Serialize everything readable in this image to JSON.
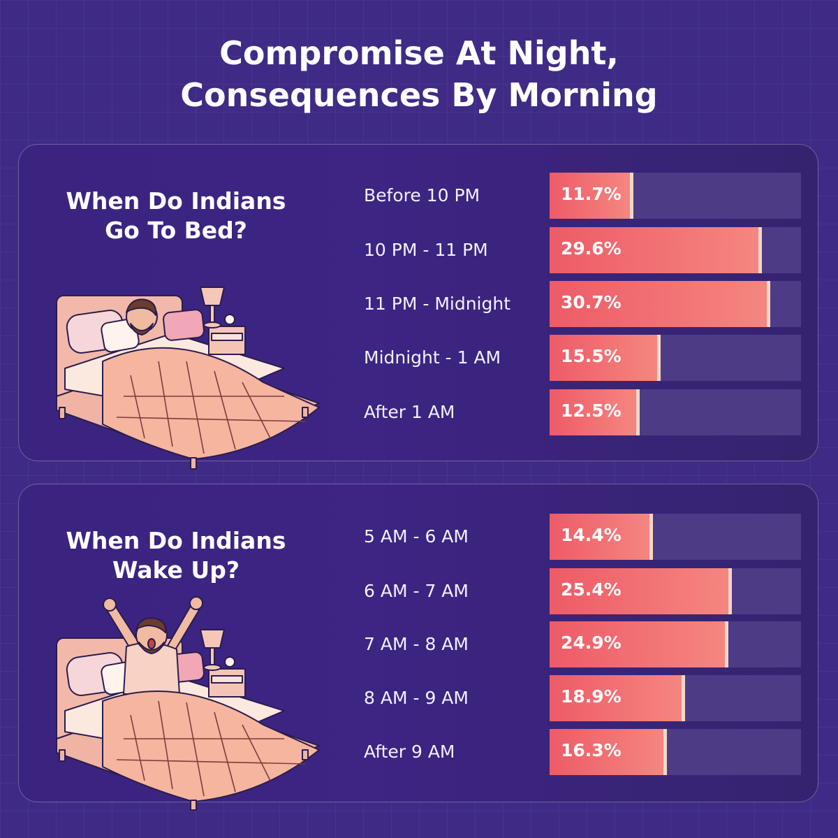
{
  "title": {
    "line1": "Compromise At Night,",
    "line2": "Consequences By Morning"
  },
  "colors": {
    "background": "#3f2b85",
    "bar_fill": "#f27474",
    "bar_track": "#4e3b86",
    "text": "#ffffff"
  },
  "panels": [
    {
      "title_line1": "When Do Indians",
      "title_line2": "Go To Bed?",
      "illustration": "sleeping-man-in-bed"
    },
    {
      "title_line1": "When Do Indians",
      "title_line2": "Wake Up?",
      "illustration": "waking-man-stretching-in-bed"
    }
  ],
  "chart_data": [
    {
      "type": "bar",
      "orientation": "horizontal",
      "title": "When Do Indians Go To Bed?",
      "categories": [
        "Before 10 PM",
        "10 PM - 11 PM",
        "11 PM - Midnight",
        "Midnight - 1 AM",
        "After 1 AM"
      ],
      "values": [
        11.7,
        29.6,
        30.7,
        15.5,
        12.5
      ],
      "value_labels": [
        "11.7%",
        "29.6%",
        "30.7%",
        "15.5%",
        "12.5%"
      ],
      "unit": "%",
      "xlim": [
        0,
        35
      ],
      "grid": false
    },
    {
      "type": "bar",
      "orientation": "horizontal",
      "title": "When Do Indians Wake Up?",
      "categories": [
        "5 AM - 6 AM",
        "6 AM - 7 AM",
        "7 AM - 8 AM",
        "8 AM - 9 AM",
        "After 9 AM"
      ],
      "values": [
        14.4,
        25.4,
        24.9,
        18.9,
        16.3
      ],
      "value_labels": [
        "14.4%",
        "25.4%",
        "24.9%",
        "18.9%",
        "16.3%"
      ],
      "unit": "%",
      "xlim": [
        0,
        35
      ],
      "grid": false
    }
  ]
}
